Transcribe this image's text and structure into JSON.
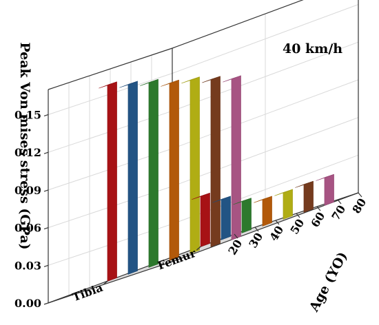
{
  "chart_data": {
    "type": "bar3d",
    "annotation": "40 km/h",
    "zlabel": "Peak Von mises stress (GPa)",
    "ylabel": "Age (YO)",
    "xlabel": "",
    "categories": [
      "Tibia",
      "Femur"
    ],
    "ages": [
      20,
      30,
      40,
      50,
      60,
      70,
      80
    ],
    "z_ticks": [
      "0.00",
      "0.03",
      "0.06",
      "0.09",
      "0.12",
      "0.15"
    ],
    "zlim": [
      0,
      0.17
    ],
    "grid": true,
    "series": [
      {
        "age": 20,
        "color": "#e8191d",
        "values": [
          0.156,
          0.04
        ]
      },
      {
        "age": 30,
        "color": "#2f74b8",
        "values": [
          0.151,
          0.032
        ]
      },
      {
        "age": 40,
        "color": "#3fa83f",
        "values": [
          0.147,
          0.025
        ]
      },
      {
        "age": 50,
        "color": "#f77c0e",
        "values": [
          0.141,
          0.021
        ]
      },
      {
        "age": 60,
        "color": "#f4f01c",
        "values": [
          0.138,
          0.021
        ]
      },
      {
        "age": 70,
        "color": "#a2522a",
        "values": [
          0.133,
          0.022
        ]
      },
      {
        "age": 80,
        "color": "#e874b6",
        "values": [
          0.128,
          0.022
        ]
      }
    ]
  }
}
